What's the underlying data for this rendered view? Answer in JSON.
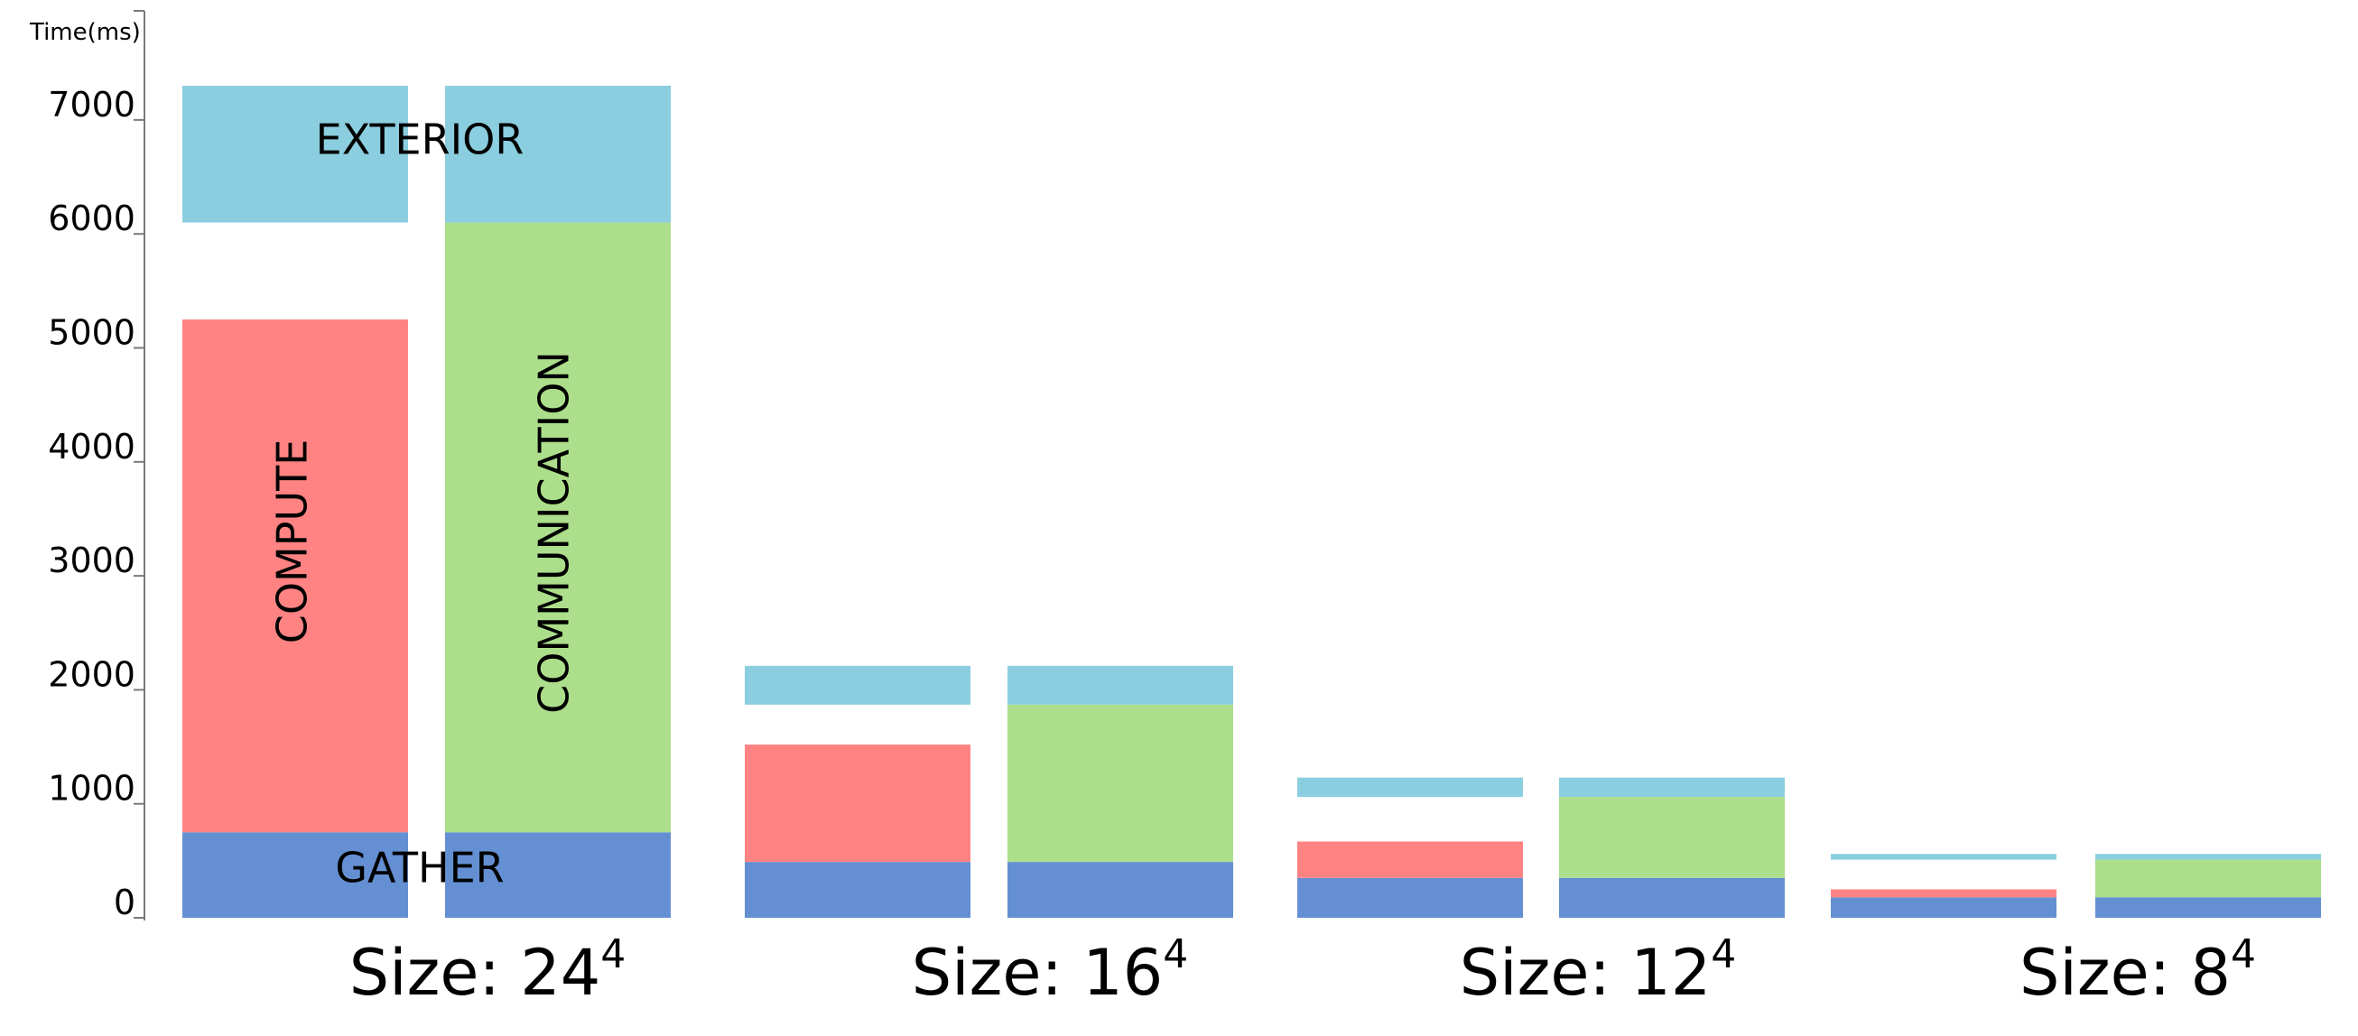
{
  "chart_data": {
    "type": "bar",
    "stacked": true,
    "ylabel": "Time(ms)",
    "ylim": [
      0,
      7800
    ],
    "yticks": [
      "0",
      "1000",
      "2000",
      "3000",
      "4000",
      "5000",
      "6000",
      "7000"
    ],
    "grid": false,
    "legend": "none",
    "colors": {
      "gather": "#6490d3",
      "compute": "#ff8383",
      "communication": "#acde8b",
      "exterior": "#8bcedf",
      "idle": "#ffffff"
    },
    "series_labels": [
      "GATHER",
      "COMPUTE",
      "COMMUNICATION",
      "EXTERIOR"
    ],
    "groups": [
      {
        "label": "Size: 24",
        "exponent": "4",
        "bars": [
          {
            "segments": [
              {
                "series": "gather",
                "value": 750
              },
              {
                "series": "compute",
                "value": 4500
              },
              {
                "series": "idle",
                "value": 850
              },
              {
                "series": "exterior",
                "value": 1200
              }
            ]
          },
          {
            "segments": [
              {
                "series": "gather",
                "value": 750
              },
              {
                "series": "communication",
                "value": 5350
              },
              {
                "series": "exterior",
                "value": 1200
              }
            ]
          }
        ]
      },
      {
        "label": "Size: 16",
        "exponent": "4",
        "bars": [
          {
            "segments": [
              {
                "series": "gather",
                "value": 490
              },
              {
                "series": "compute",
                "value": 1030
              },
              {
                "series": "idle",
                "value": 350
              },
              {
                "series": "exterior",
                "value": 340
              }
            ]
          },
          {
            "segments": [
              {
                "series": "gather",
                "value": 490
              },
              {
                "series": "communication",
                "value": 1380
              },
              {
                "series": "exterior",
                "value": 340
              }
            ]
          }
        ]
      },
      {
        "label": "Size: 12",
        "exponent": "4",
        "bars": [
          {
            "segments": [
              {
                "series": "gather",
                "value": 350
              },
              {
                "series": "compute",
                "value": 320
              },
              {
                "series": "idle",
                "value": 390
              },
              {
                "series": "exterior",
                "value": 170
              }
            ]
          },
          {
            "segments": [
              {
                "series": "gather",
                "value": 350
              },
              {
                "series": "communication",
                "value": 710
              },
              {
                "series": "exterior",
                "value": 170
              }
            ]
          }
        ]
      },
      {
        "label": "Size: 8",
        "exponent": "4",
        "bars": [
          {
            "segments": [
              {
                "series": "gather",
                "value": 180
              },
              {
                "series": "compute",
                "value": 70
              },
              {
                "series": "idle",
                "value": 260
              },
              {
                "series": "exterior",
                "value": 50
              }
            ]
          },
          {
            "segments": [
              {
                "series": "gather",
                "value": 180
              },
              {
                "series": "communication",
                "value": 330
              },
              {
                "series": "exterior",
                "value": 50
              }
            ]
          }
        ]
      }
    ]
  }
}
